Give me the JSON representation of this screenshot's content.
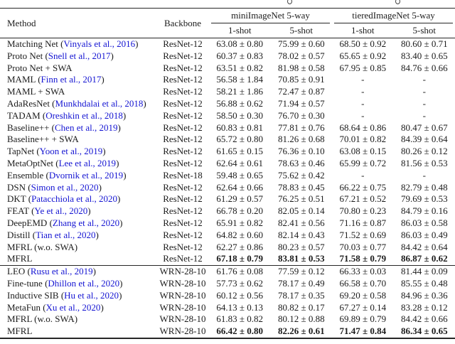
{
  "page": {
    "background": "#ffffff",
    "text_color": "#1b1b1b",
    "rule_color": "#262626",
    "citation_color": "#1414d2",
    "caption_fragments": [
      "g-descender-fragment",
      "g-descender-fragment"
    ]
  },
  "table": {
    "headers": {
      "method": "Method",
      "backbone": "Backbone",
      "group1": "miniImageNet 5-way",
      "group2": "tieredImageNet 5-way",
      "sub": [
        "1-shot",
        "5-shot",
        "1-shot",
        "5-shot"
      ]
    },
    "rows": [
      {
        "method": "Matching Net",
        "cite": "Vinyals et al., 2016",
        "backbone": "ResNet-12",
        "values": [
          "63.08 ± 0.80",
          "75.99 ± 0.60",
          "68.50 ± 0.92",
          "80.60 ± 0.71"
        ],
        "bold": false,
        "section_end": false
      },
      {
        "method": "Proto Net",
        "cite": "Snell et al., 2017",
        "backbone": "ResNet-12",
        "values": [
          "60.37 ± 0.83",
          "78.02 ± 0.57",
          "65.65 ± 0.92",
          "83.40 ± 0.65"
        ],
        "bold": false,
        "section_end": false
      },
      {
        "method": "Proto Net + SWA",
        "cite": null,
        "backbone": "ResNet-12",
        "values": [
          "63.51 ± 0.82",
          "81.98 ± 0.58",
          "67.95 ± 0.85",
          "84.76 ± 0.66"
        ],
        "bold": false,
        "section_end": false
      },
      {
        "method": "MAML",
        "cite": "Finn et al., 2017",
        "backbone": "ResNet-12",
        "values": [
          "56.58 ± 1.84",
          "70.85 ± 0.91",
          "-",
          "-"
        ],
        "bold": false,
        "section_end": false
      },
      {
        "method": "MAML + SWA",
        "cite": null,
        "backbone": "ResNet-12",
        "values": [
          "58.21 ± 1.86",
          "72.47 ± 0.87",
          "-",
          "-"
        ],
        "bold": false,
        "section_end": false
      },
      {
        "method": "AdaResNet",
        "cite": "Munkhdalai et al., 2018",
        "backbone": "ResNet-12",
        "values": [
          "56.88 ± 0.62",
          "71.94 ± 0.57",
          "-",
          "-"
        ],
        "bold": false,
        "section_end": false
      },
      {
        "method": "TADAM",
        "cite": "Oreshkin et al., 2018",
        "backbone": "ResNet-12",
        "values": [
          "58.50 ± 0.30",
          "76.70 ± 0.30",
          "-",
          "-"
        ],
        "bold": false,
        "section_end": false
      },
      {
        "method": "Baseline++",
        "cite": "Chen et al., 2019",
        "backbone": "ResNet-12",
        "values": [
          "60.83 ± 0.81",
          "77.81 ± 0.76",
          "68.64 ± 0.86",
          "80.47 ± 0.67"
        ],
        "bold": false,
        "section_end": false
      },
      {
        "method": "Baseline++ + SWA",
        "cite": null,
        "backbone": "ResNet-12",
        "values": [
          "65.72 ± 0.80",
          "81.26 ± 0.68",
          "70.01 ± 0.82",
          "84.39 ± 0.64"
        ],
        "bold": false,
        "section_end": false
      },
      {
        "method": "TapNet",
        "cite": "Yoon et al., 2019",
        "backbone": "ResNet-12",
        "values": [
          "61.65 ± 0.15",
          "76.36 ± 0.10",
          "63.08 ± 0.15",
          "80.26 ± 0.12"
        ],
        "bold": false,
        "section_end": false
      },
      {
        "method": "MetaOptNet",
        "cite": "Lee et al., 2019",
        "backbone": "ResNet-12",
        "values": [
          "62.64 ± 0.61",
          "78.63 ± 0.46",
          "65.99 ± 0.72",
          "81.56 ± 0.53"
        ],
        "bold": false,
        "section_end": false
      },
      {
        "method": "Ensemble",
        "cite": "Dvornik et al., 2019",
        "backbone": "ResNet-18",
        "values": [
          "59.48 ± 0.65",
          "75.62 ± 0.42",
          "-",
          "-"
        ],
        "bold": false,
        "section_end": false
      },
      {
        "method": "DSN",
        "cite": "Simon et al., 2020",
        "backbone": "ResNet-12",
        "values": [
          "62.64 ± 0.66",
          "78.83 ± 0.45",
          "66.22 ± 0.75",
          "82.79 ± 0.48"
        ],
        "bold": false,
        "section_end": false
      },
      {
        "method": "DKT",
        "cite": "Patacchiola et al., 2020",
        "backbone": "ResNet-12",
        "values": [
          "61.29 ± 0.57",
          "76.25 ± 0.51",
          "67.21 ± 0.52",
          "79.69 ± 0.53"
        ],
        "bold": false,
        "section_end": false
      },
      {
        "method": "FEAT",
        "cite": "Ye et al., 2020",
        "backbone": "ResNet-12",
        "values": [
          "66.78 ± 0.20",
          "82.05 ± 0.14",
          "70.80 ± 0.23",
          "84.79 ± 0.16"
        ],
        "bold": false,
        "section_end": false
      },
      {
        "method": "DeepEMD",
        "cite": "Zhang et al., 2020",
        "backbone": "ResNet-12",
        "values": [
          "65.91 ± 0.82",
          "82.41 ± 0.56",
          "71.16 ± 0.87",
          "86.03 ± 0.58"
        ],
        "bold": false,
        "section_end": false
      },
      {
        "method": "Distill",
        "cite": "Tian et al., 2020",
        "backbone": "ResNet-12",
        "values": [
          "64.82 ± 0.60",
          "82.14 ± 0.43",
          "71.52 ± 0.69",
          "86.03 ± 0.49"
        ],
        "bold": false,
        "section_end": false
      },
      {
        "method": "MFRL (w.o. SWA)",
        "cite": null,
        "backbone": "ResNet-12",
        "values": [
          "62.27 ± 0.86",
          "80.23 ± 0.57",
          "70.03 ± 0.77",
          "84.42 ± 0.64"
        ],
        "bold": false,
        "section_end": false
      },
      {
        "method": "MFRL",
        "cite": null,
        "backbone": "ResNet-12",
        "values": [
          "67.18 ± 0.79",
          "83.81 ± 0.53",
          "71.58 ± 0.79",
          "86.87 ± 0.62"
        ],
        "bold": true,
        "section_end": true
      },
      {
        "method": "LEO",
        "cite": "Rusu et al., 2019",
        "backbone": "WRN-28-10",
        "values": [
          "61.76 ± 0.08",
          "77.59 ± 0.12",
          "66.33 ± 0.03",
          "81.44 ± 0.09"
        ],
        "bold": false,
        "section_end": false
      },
      {
        "method": "Fine-tune",
        "cite": "Dhillon et al., 2020",
        "backbone": "WRN-28-10",
        "values": [
          "57.73 ± 0.62",
          "78.17 ± 0.49",
          "66.58 ± 0.70",
          "85.55 ± 0.48"
        ],
        "bold": false,
        "section_end": false
      },
      {
        "method": "Inductive SIB",
        "cite": "Hu et al., 2020",
        "backbone": "WRN-28-10",
        "values": [
          "60.12 ± 0.56",
          "78.17 ± 0.35",
          "69.20 ± 0.58",
          "84.96 ± 0.36"
        ],
        "bold": false,
        "section_end": false
      },
      {
        "method": "MetaFun",
        "cite": "Xu et al., 2020",
        "backbone": "WRN-28-10",
        "values": [
          "64.13 ± 0.13",
          "80.82 ± 0.17",
          "67.27 ± 0.14",
          "83.28 ± 0.12"
        ],
        "bold": false,
        "section_end": false
      },
      {
        "method": "MFRL (w.o. SWA)",
        "cite": null,
        "backbone": "WRN-28-10",
        "values": [
          "61.83 ± 0.82",
          "80.12 ± 0.88",
          "69.89 ± 0.79",
          "84.42 ± 0.66"
        ],
        "bold": false,
        "section_end": false
      },
      {
        "method": "MFRL",
        "cite": null,
        "backbone": "WRN-28-10",
        "values": [
          "66.42 ± 0.80",
          "82.26 ± 0.61",
          "71.47 ± 0.84",
          "86.34 ± 0.65"
        ],
        "bold": true,
        "section_end": false
      }
    ]
  }
}
